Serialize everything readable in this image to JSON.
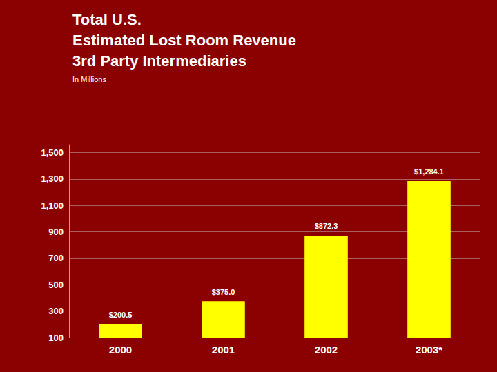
{
  "chart_data": {
    "type": "bar",
    "title": "Total U.S.\nEstimated Lost Room Revenue\n3rd Party Intermediaries",
    "subtitle": "In Millions",
    "categories": [
      "2000",
      "2001",
      "2002",
      "2003*"
    ],
    "values": [
      200.5,
      375.0,
      872.3,
      1284.1
    ],
    "value_labels": [
      "$200.5",
      "$375.0",
      "$872.3",
      "$1,284.1"
    ],
    "data_labels": true,
    "color": "#FFFF00",
    "ylim": [
      100,
      1560
    ],
    "yticks": [
      100,
      300,
      500,
      700,
      900,
      {
        "value": 1100,
        "label": "1,100"
      },
      {
        "value": 1300,
        "label": "1,300"
      },
      {
        "value": 1500,
        "label": "1,500"
      }
    ],
    "grid": true
  }
}
